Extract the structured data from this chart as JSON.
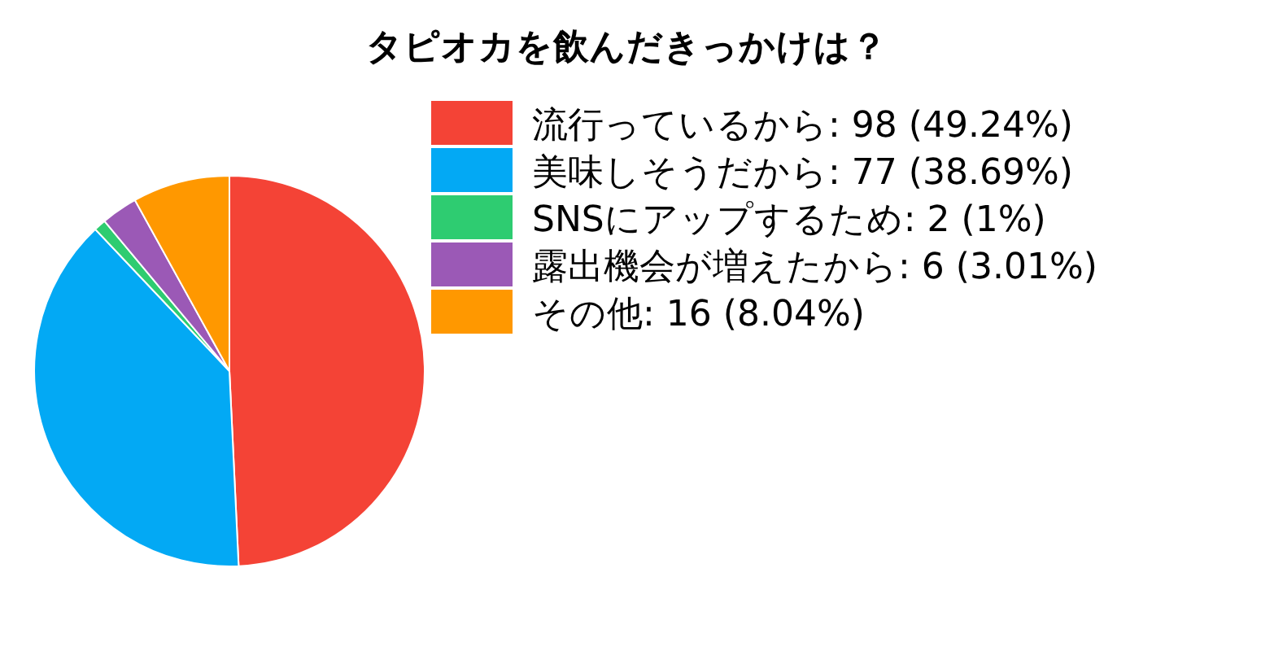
{
  "chart_data": {
    "type": "pie",
    "title": "タピオカを飲んだきっかけは？",
    "categories": [
      "流行っているから: 98 (49.24%)",
      "美味しそうだから: 77 (38.69%)",
      "SNSにアップするため: 2 (1%)",
      "露出機会が増えたから: 6 (3.01%)",
      "その他: 16 (8.04%)"
    ],
    "values": [
      98,
      77,
      2,
      6,
      16
    ],
    "colors": [
      "#f44336",
      "#03a9f4",
      "#2ecc71",
      "#9b59b6",
      "#ff9800"
    ],
    "legend": "right"
  }
}
